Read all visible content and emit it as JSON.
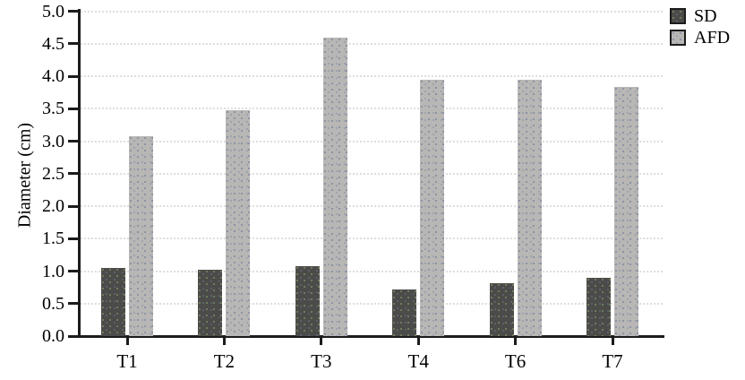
{
  "chart_data": {
    "type": "bar",
    "title": "",
    "xlabel": "",
    "ylabel": "Diameter (cm)",
    "categories": [
      "T1",
      "T2",
      "T3",
      "T4",
      "T6",
      "T7"
    ],
    "series": [
      {
        "name": "SD",
        "color": "#4b4b49",
        "values": [
          1.05,
          1.02,
          1.07,
          0.72,
          0.82,
          0.9
        ]
      },
      {
        "name": "AFD",
        "color": "#b8b7b5",
        "values": [
          3.08,
          3.48,
          4.6,
          3.95,
          3.95,
          3.84
        ]
      }
    ],
    "ylim": [
      0.0,
      5.0
    ],
    "ytick_step": 0.5,
    "ytick_labels": [
      "0.0",
      "0.5",
      "1.0",
      "1.5",
      "2.0",
      "2.5",
      "3.0",
      "3.5",
      "4.0",
      "4.5",
      "5.0"
    ],
    "grid": true,
    "gridline_style": "dotted-light-gray",
    "legend_position": "top-right",
    "bar_texture": "speckled"
  }
}
